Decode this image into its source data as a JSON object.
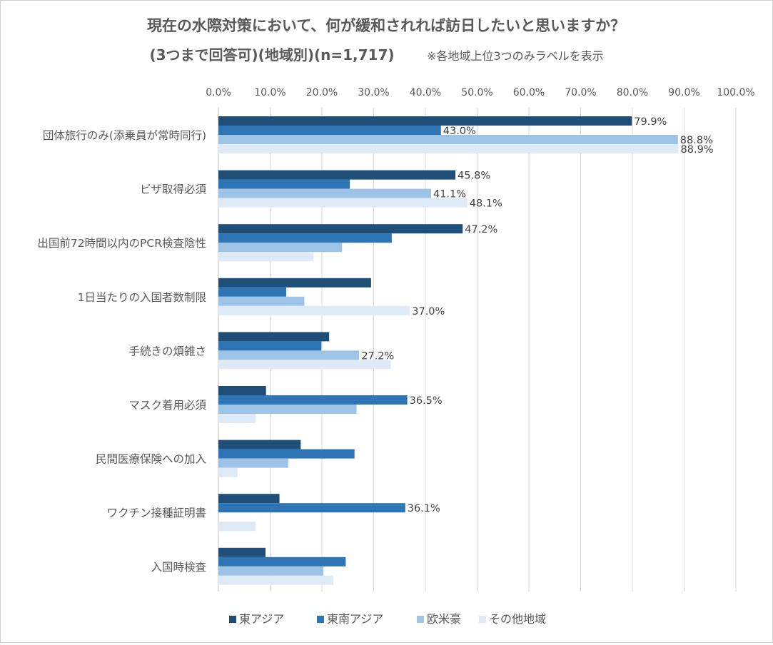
{
  "chart_data": {
    "type": "bar",
    "orientation": "horizontal",
    "title": "現在の水際対策において、何が緩和されれば訪日したいと思いますか？",
    "subtitle": "(3つまで回答可)(地域別)(n=1,717)",
    "note": "※各地域上位3つのみラベルを表示",
    "xlim": [
      0,
      100
    ],
    "x_ticks": [
      "0.0%",
      "10.0%",
      "20.0%",
      "30.0%",
      "40.0%",
      "50.0%",
      "60.0%",
      "70.0%",
      "80.0%",
      "90.0%",
      "100.0%"
    ],
    "grid": true,
    "legend_position": "bottom",
    "categories": [
      "団体旅行のみ(添乗員が常時同行)",
      "ビザ取得必須",
      "出国前72時間以内のPCR検査陰性",
      "1日当たりの入国者数制限",
      "手続きの煩雑さ",
      "マスク着用必須",
      "民間医療保険への加入",
      "ワクチン接種証明書",
      "入国時検査"
    ],
    "series": [
      {
        "name": "東アジア",
        "color": "#1f4e79",
        "values": [
          79.9,
          45.8,
          47.2,
          29.5,
          21.4,
          9.2,
          15.9,
          11.8,
          9.1
        ],
        "labels": [
          "79.9%",
          "45.8%",
          "47.2%",
          "",
          "",
          "",
          "",
          "",
          ""
        ]
      },
      {
        "name": "東南アジア",
        "color": "#2e75b6",
        "values": [
          43.0,
          25.4,
          33.5,
          13.1,
          19.9,
          36.5,
          26.3,
          36.1,
          24.6
        ],
        "labels": [
          "43.0%",
          "",
          "",
          "",
          "",
          "36.5%",
          "",
          "36.1%",
          ""
        ]
      },
      {
        "name": "欧米豪",
        "color": "#9dc3e6",
        "values": [
          88.8,
          41.1,
          23.9,
          16.6,
          27.2,
          26.7,
          13.5,
          0.0,
          20.3
        ],
        "labels": [
          "88.8%",
          "41.1%",
          "",
          "",
          "27.2%",
          "",
          "",
          "",
          ""
        ]
      },
      {
        "name": "その他地域",
        "color": "#deebf7",
        "values": [
          88.9,
          48.1,
          18.4,
          37.0,
          33.3,
          7.2,
          3.7,
          7.2,
          22.2
        ],
        "labels": [
          "88.9%",
          "48.1%",
          "",
          "37.0%",
          "",
          "",
          "",
          "",
          ""
        ]
      }
    ]
  }
}
